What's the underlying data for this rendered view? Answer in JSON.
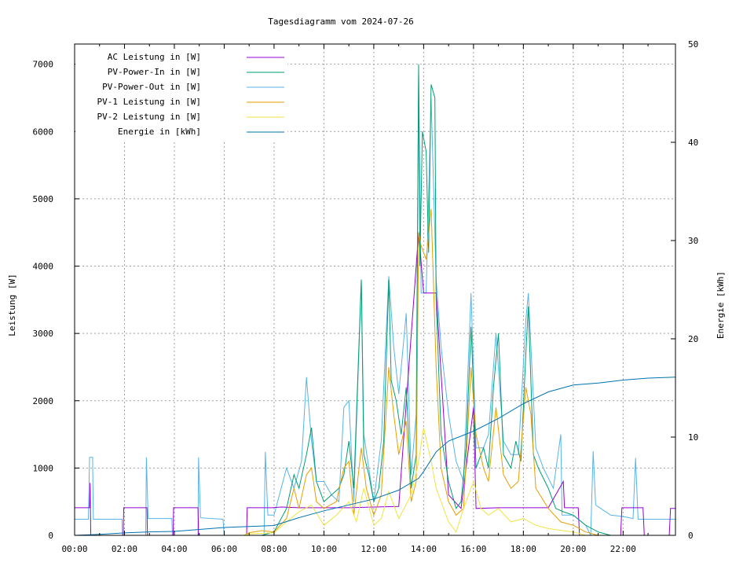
{
  "chart_data": {
    "type": "line",
    "title": "Tagesdiagramm vom 2024-07-26",
    "xlabel": "",
    "ylabel": "Leistung [W]",
    "y2label": "Energie [kWh]",
    "xlim": [
      0,
      24.1
    ],
    "ylim": [
      0,
      7300
    ],
    "y2lim": [
      0,
      50
    ],
    "grid": true,
    "legend_position": "top-left",
    "x_ticks": [
      {
        "h": 0,
        "label": "00:00"
      },
      {
        "h": 2,
        "label": "02:00"
      },
      {
        "h": 4,
        "label": "04:00"
      },
      {
        "h": 6,
        "label": "06:00"
      },
      {
        "h": 8,
        "label": "08:00"
      },
      {
        "h": 10,
        "label": "10:00"
      },
      {
        "h": 12,
        "label": "12:00"
      },
      {
        "h": 14,
        "label": "14:00"
      },
      {
        "h": 16,
        "label": "16:00"
      },
      {
        "h": 18,
        "label": "18:00"
      },
      {
        "h": 20,
        "label": "20:00"
      },
      {
        "h": 22,
        "label": "22:00"
      }
    ],
    "y_ticks": [
      "0",
      "1000",
      "2000",
      "3000",
      "4000",
      "5000",
      "6000",
      "7000"
    ],
    "y2_ticks": [
      "0",
      "10",
      "20",
      "30",
      "40",
      "50"
    ],
    "series": [
      {
        "name": "AC Leistung in [W]",
        "axis": "y1",
        "color": "#9400d3",
        "points": [
          [
            0,
            410
          ],
          [
            0.6,
            410
          ],
          [
            0.62,
            780
          ],
          [
            0.65,
            0
          ],
          [
            1.95,
            0
          ],
          [
            1.97,
            410
          ],
          [
            2.9,
            410
          ],
          [
            2.92,
            0
          ],
          [
            3.95,
            0
          ],
          [
            3.97,
            410
          ],
          [
            4.95,
            410
          ],
          [
            4.97,
            0
          ],
          [
            6.9,
            0
          ],
          [
            6.92,
            410
          ],
          [
            7.9,
            410
          ],
          [
            8.3,
            420
          ],
          [
            9,
            410
          ],
          [
            10,
            410
          ],
          [
            11,
            410
          ],
          [
            12,
            420
          ],
          [
            13,
            430
          ],
          [
            13.8,
            4500
          ],
          [
            14,
            3600
          ],
          [
            14.5,
            3600
          ],
          [
            15,
            600
          ],
          [
            15.5,
            400
          ],
          [
            16,
            1900
          ],
          [
            16.1,
            400
          ],
          [
            17,
            410
          ],
          [
            18,
            410
          ],
          [
            19,
            410
          ],
          [
            19.6,
            800
          ],
          [
            19.65,
            410
          ],
          [
            20.2,
            410
          ],
          [
            20.25,
            0
          ],
          [
            21.9,
            0
          ],
          [
            21.95,
            410
          ],
          [
            22.8,
            410
          ],
          [
            22.85,
            0
          ],
          [
            23.85,
            0
          ],
          [
            23.9,
            400
          ],
          [
            24.1,
            400
          ]
        ]
      },
      {
        "name": "PV-Power-In in [W]",
        "axis": "y1",
        "color": "#009e73",
        "points": [
          [
            0,
            0
          ],
          [
            7.5,
            0
          ],
          [
            8,
            50
          ],
          [
            8.5,
            400
          ],
          [
            8.8,
            900
          ],
          [
            9,
            700
          ],
          [
            9.3,
            1200
          ],
          [
            9.5,
            1600
          ],
          [
            9.7,
            800
          ],
          [
            10,
            500
          ],
          [
            10.3,
            600
          ],
          [
            10.6,
            700
          ],
          [
            10.8,
            900
          ],
          [
            11,
            1400
          ],
          [
            11.2,
            700
          ],
          [
            11.5,
            3800
          ],
          [
            11.6,
            1200
          ],
          [
            11.8,
            900
          ],
          [
            12,
            500
          ],
          [
            12.2,
            700
          ],
          [
            12.4,
            1400
          ],
          [
            12.6,
            3800
          ],
          [
            12.7,
            2300
          ],
          [
            12.9,
            2000
          ],
          [
            13.1,
            1500
          ],
          [
            13.3,
            2200
          ],
          [
            13.5,
            700
          ],
          [
            13.7,
            1200
          ],
          [
            13.8,
            7000
          ],
          [
            13.85,
            4000
          ],
          [
            13.95,
            6000
          ],
          [
            14.1,
            5700
          ],
          [
            14.2,
            4200
          ],
          [
            14.3,
            6700
          ],
          [
            14.45,
            6500
          ],
          [
            14.5,
            3500
          ],
          [
            14.7,
            1500
          ],
          [
            15,
            800
          ],
          [
            15.3,
            400
          ],
          [
            15.5,
            500
          ],
          [
            15.7,
            1300
          ],
          [
            15.9,
            3100
          ],
          [
            16,
            2200
          ],
          [
            16.1,
            1000
          ],
          [
            16.4,
            1300
          ],
          [
            16.6,
            1000
          ],
          [
            16.8,
            2200
          ],
          [
            17,
            3000
          ],
          [
            17.2,
            1200
          ],
          [
            17.5,
            1000
          ],
          [
            17.7,
            1400
          ],
          [
            17.9,
            1100
          ],
          [
            18.1,
            2700
          ],
          [
            18.2,
            3400
          ],
          [
            18.4,
            1200
          ],
          [
            18.6,
            1000
          ],
          [
            19,
            700
          ],
          [
            19.3,
            400
          ],
          [
            19.6,
            350
          ],
          [
            20,
            300
          ],
          [
            20.5,
            150
          ],
          [
            21,
            50
          ],
          [
            21.5,
            0
          ],
          [
            24.1,
            0
          ]
        ]
      },
      {
        "name": "PV-Power-Out in [W]",
        "axis": "y1",
        "color": "#56b4e9",
        "points": [
          [
            0,
            240
          ],
          [
            0.55,
            240
          ],
          [
            0.6,
            1160
          ],
          [
            0.72,
            1160
          ],
          [
            0.75,
            240
          ],
          [
            1.9,
            240
          ],
          [
            1.92,
            0
          ],
          [
            2.85,
            0
          ],
          [
            2.88,
            1160
          ],
          [
            2.95,
            250
          ],
          [
            3.9,
            250
          ],
          [
            3.92,
            0
          ],
          [
            4.95,
            0
          ],
          [
            4.97,
            1160
          ],
          [
            5.05,
            260
          ],
          [
            5.95,
            240
          ],
          [
            6,
            0
          ],
          [
            7.6,
            0
          ],
          [
            7.65,
            1240
          ],
          [
            7.75,
            300
          ],
          [
            8,
            300
          ],
          [
            8.5,
            1000
          ],
          [
            8.8,
            700
          ],
          [
            9.1,
            1100
          ],
          [
            9.3,
            2350
          ],
          [
            9.5,
            1400
          ],
          [
            9.7,
            800
          ],
          [
            10,
            800
          ],
          [
            10.3,
            600
          ],
          [
            10.6,
            500
          ],
          [
            10.8,
            1900
          ],
          [
            11,
            2000
          ],
          [
            11.2,
            500
          ],
          [
            11.5,
            3800
          ],
          [
            11.6,
            1500
          ],
          [
            12,
            500
          ],
          [
            12.3,
            1400
          ],
          [
            12.6,
            3850
          ],
          [
            12.8,
            2800
          ],
          [
            13,
            2100
          ],
          [
            13.3,
            3300
          ],
          [
            13.5,
            900
          ],
          [
            13.7,
            1800
          ],
          [
            13.8,
            6900
          ],
          [
            13.9,
            3600
          ],
          [
            14.1,
            3600
          ],
          [
            14.3,
            6500
          ],
          [
            14.5,
            3800
          ],
          [
            14.7,
            2800
          ],
          [
            15,
            1800
          ],
          [
            15.3,
            1100
          ],
          [
            15.6,
            800
          ],
          [
            15.9,
            3600
          ],
          [
            16.1,
            1300
          ],
          [
            16.4,
            1300
          ],
          [
            16.6,
            1500
          ],
          [
            16.9,
            3000
          ],
          [
            17.2,
            1400
          ],
          [
            17.5,
            1200
          ],
          [
            17.8,
            1200
          ],
          [
            18.1,
            3200
          ],
          [
            18.2,
            3600
          ],
          [
            18.5,
            1300
          ],
          [
            18.8,
            1000
          ],
          [
            19.2,
            700
          ],
          [
            19.5,
            1500
          ],
          [
            19.55,
            300
          ],
          [
            20,
            300
          ],
          [
            20.5,
            150
          ],
          [
            20.7,
            0
          ],
          [
            20.8,
            1250
          ],
          [
            20.9,
            450
          ],
          [
            21.5,
            300
          ],
          [
            22,
            280
          ],
          [
            22.4,
            250
          ],
          [
            22.5,
            1150
          ],
          [
            22.6,
            240
          ],
          [
            23.9,
            240
          ],
          [
            24.1,
            240
          ]
        ]
      },
      {
        "name": "PV-1 Leistung in [W]",
        "axis": "y1",
        "color": "#e69f00",
        "points": [
          [
            0,
            0
          ],
          [
            6.8,
            0
          ],
          [
            7,
            40
          ],
          [
            7.5,
            70
          ],
          [
            8,
            50
          ],
          [
            8.5,
            250
          ],
          [
            8.8,
            700
          ],
          [
            9,
            400
          ],
          [
            9.3,
            900
          ],
          [
            9.5,
            1000
          ],
          [
            9.7,
            500
          ],
          [
            10,
            400
          ],
          [
            10.5,
            500
          ],
          [
            10.8,
            1000
          ],
          [
            11,
            1100
          ],
          [
            11.2,
            300
          ],
          [
            11.5,
            1300
          ],
          [
            11.7,
            700
          ],
          [
            12,
            300
          ],
          [
            12.3,
            600
          ],
          [
            12.6,
            2500
          ],
          [
            12.8,
            1800
          ],
          [
            13,
            1200
          ],
          [
            13.3,
            1700
          ],
          [
            13.5,
            500
          ],
          [
            13.7,
            800
          ],
          [
            13.8,
            4500
          ],
          [
            13.9,
            4300
          ],
          [
            14.1,
            4100
          ],
          [
            14.3,
            4850
          ],
          [
            14.5,
            2500
          ],
          [
            14.7,
            1000
          ],
          [
            15,
            500
          ],
          [
            15.3,
            300
          ],
          [
            15.6,
            400
          ],
          [
            15.9,
            2500
          ],
          [
            16.1,
            1500
          ],
          [
            16.4,
            1000
          ],
          [
            16.6,
            800
          ],
          [
            16.9,
            1900
          ],
          [
            17.2,
            900
          ],
          [
            17.5,
            700
          ],
          [
            17.8,
            800
          ],
          [
            18.1,
            2200
          ],
          [
            18.3,
            1800
          ],
          [
            18.5,
            700
          ],
          [
            19,
            400
          ],
          [
            19.5,
            200
          ],
          [
            20,
            150
          ],
          [
            20.5,
            50
          ],
          [
            21,
            0
          ],
          [
            24.1,
            0
          ]
        ]
      },
      {
        "name": "PV-2 Leistung in [W]",
        "axis": "y1",
        "color": "#f0e442",
        "points": [
          [
            0,
            0
          ],
          [
            6.8,
            0
          ],
          [
            7,
            20
          ],
          [
            8,
            40
          ],
          [
            8.5,
            200
          ],
          [
            9,
            350
          ],
          [
            9.5,
            450
          ],
          [
            10,
            150
          ],
          [
            10.5,
            300
          ],
          [
            11,
            500
          ],
          [
            11.3,
            200
          ],
          [
            11.6,
            700
          ],
          [
            12,
            150
          ],
          [
            12.3,
            250
          ],
          [
            12.6,
            650
          ],
          [
            13,
            250
          ],
          [
            13.5,
            600
          ],
          [
            13.8,
            1100
          ],
          [
            14,
            1600
          ],
          [
            14.3,
            1100
          ],
          [
            14.5,
            700
          ],
          [
            15,
            200
          ],
          [
            15.3,
            50
          ],
          [
            15.6,
            400
          ],
          [
            16,
            800
          ],
          [
            16.3,
            400
          ],
          [
            16.6,
            300
          ],
          [
            17,
            400
          ],
          [
            17.5,
            200
          ],
          [
            18,
            250
          ],
          [
            18.5,
            150
          ],
          [
            19,
            100
          ],
          [
            20,
            50
          ],
          [
            20.5,
            0
          ],
          [
            24.1,
            0
          ]
        ]
      },
      {
        "name": "Energie in [kWh]",
        "axis": "y2",
        "color": "#0072b2",
        "points": [
          [
            0,
            0
          ],
          [
            1,
            0.1
          ],
          [
            2,
            0.25
          ],
          [
            3,
            0.35
          ],
          [
            4,
            0.4
          ],
          [
            5,
            0.6
          ],
          [
            6,
            0.8
          ],
          [
            7,
            0.9
          ],
          [
            8,
            1.0
          ],
          [
            9,
            1.8
          ],
          [
            10,
            2.5
          ],
          [
            11,
            3.1
          ],
          [
            12,
            3.7
          ],
          [
            13,
            4.6
          ],
          [
            13.8,
            5.8
          ],
          [
            14,
            6.5
          ],
          [
            14.5,
            8.5
          ],
          [
            15,
            9.6
          ],
          [
            16,
            10.6
          ],
          [
            17,
            11.9
          ],
          [
            18,
            13.4
          ],
          [
            19,
            14.6
          ],
          [
            20,
            15.3
          ],
          [
            21,
            15.5
          ],
          [
            22,
            15.8
          ],
          [
            23,
            16.0
          ],
          [
            24.1,
            16.1
          ]
        ]
      }
    ]
  }
}
